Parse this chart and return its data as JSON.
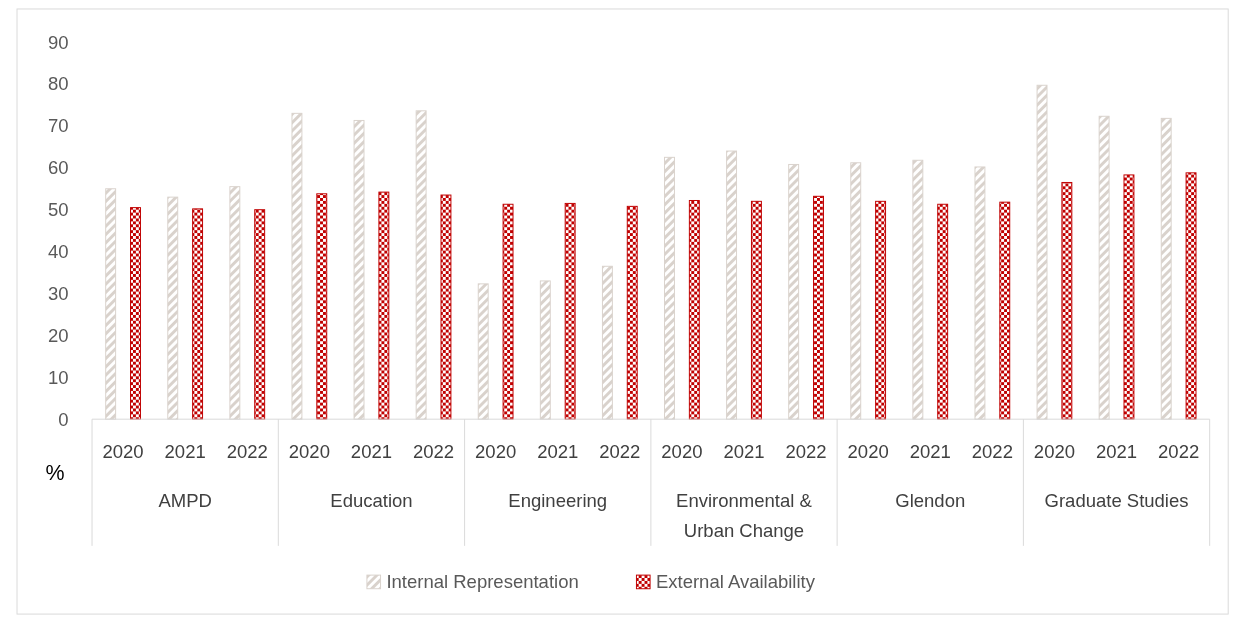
{
  "chart_data": {
    "type": "bar",
    "ylabel": "%",
    "categories": [
      "2020",
      "2021",
      "2022",
      "2020",
      "2021",
      "2022",
      "2020",
      "2021",
      "2022",
      "2020",
      "2021",
      "2022",
      "2020",
      "2021",
      "2022",
      "2020",
      "2021",
      "2022"
    ],
    "annotations": [
      "AMPD",
      "Education",
      "Engineering",
      "Environmental & Urban Change",
      "Glendon",
      "Graduate Studies"
    ],
    "series": [
      {
        "name": "Internal Representation",
        "color": "#d9d2cc",
        "values": [
          55,
          53,
          55.5,
          73,
          71.3,
          73.6,
          32.3,
          33,
          36.5,
          62.5,
          64,
          60.8,
          61.2,
          61.8,
          60.2,
          79.7,
          72.3,
          71.8
        ]
      },
      {
        "name": "External Availability",
        "color": "#c00000",
        "values": [
          50.5,
          50.2,
          50,
          53.8,
          54.2,
          53.5,
          51.3,
          51.5,
          50.8,
          52.2,
          52,
          53.2,
          52,
          51.3,
          51.8,
          56.5,
          58.3,
          58.8
        ]
      }
    ],
    "ylim": [
      0,
      90
    ],
    "yticks": [
      0,
      10,
      20,
      30,
      40,
      50,
      60,
      70,
      80,
      90
    ],
    "legend": "bottom"
  }
}
